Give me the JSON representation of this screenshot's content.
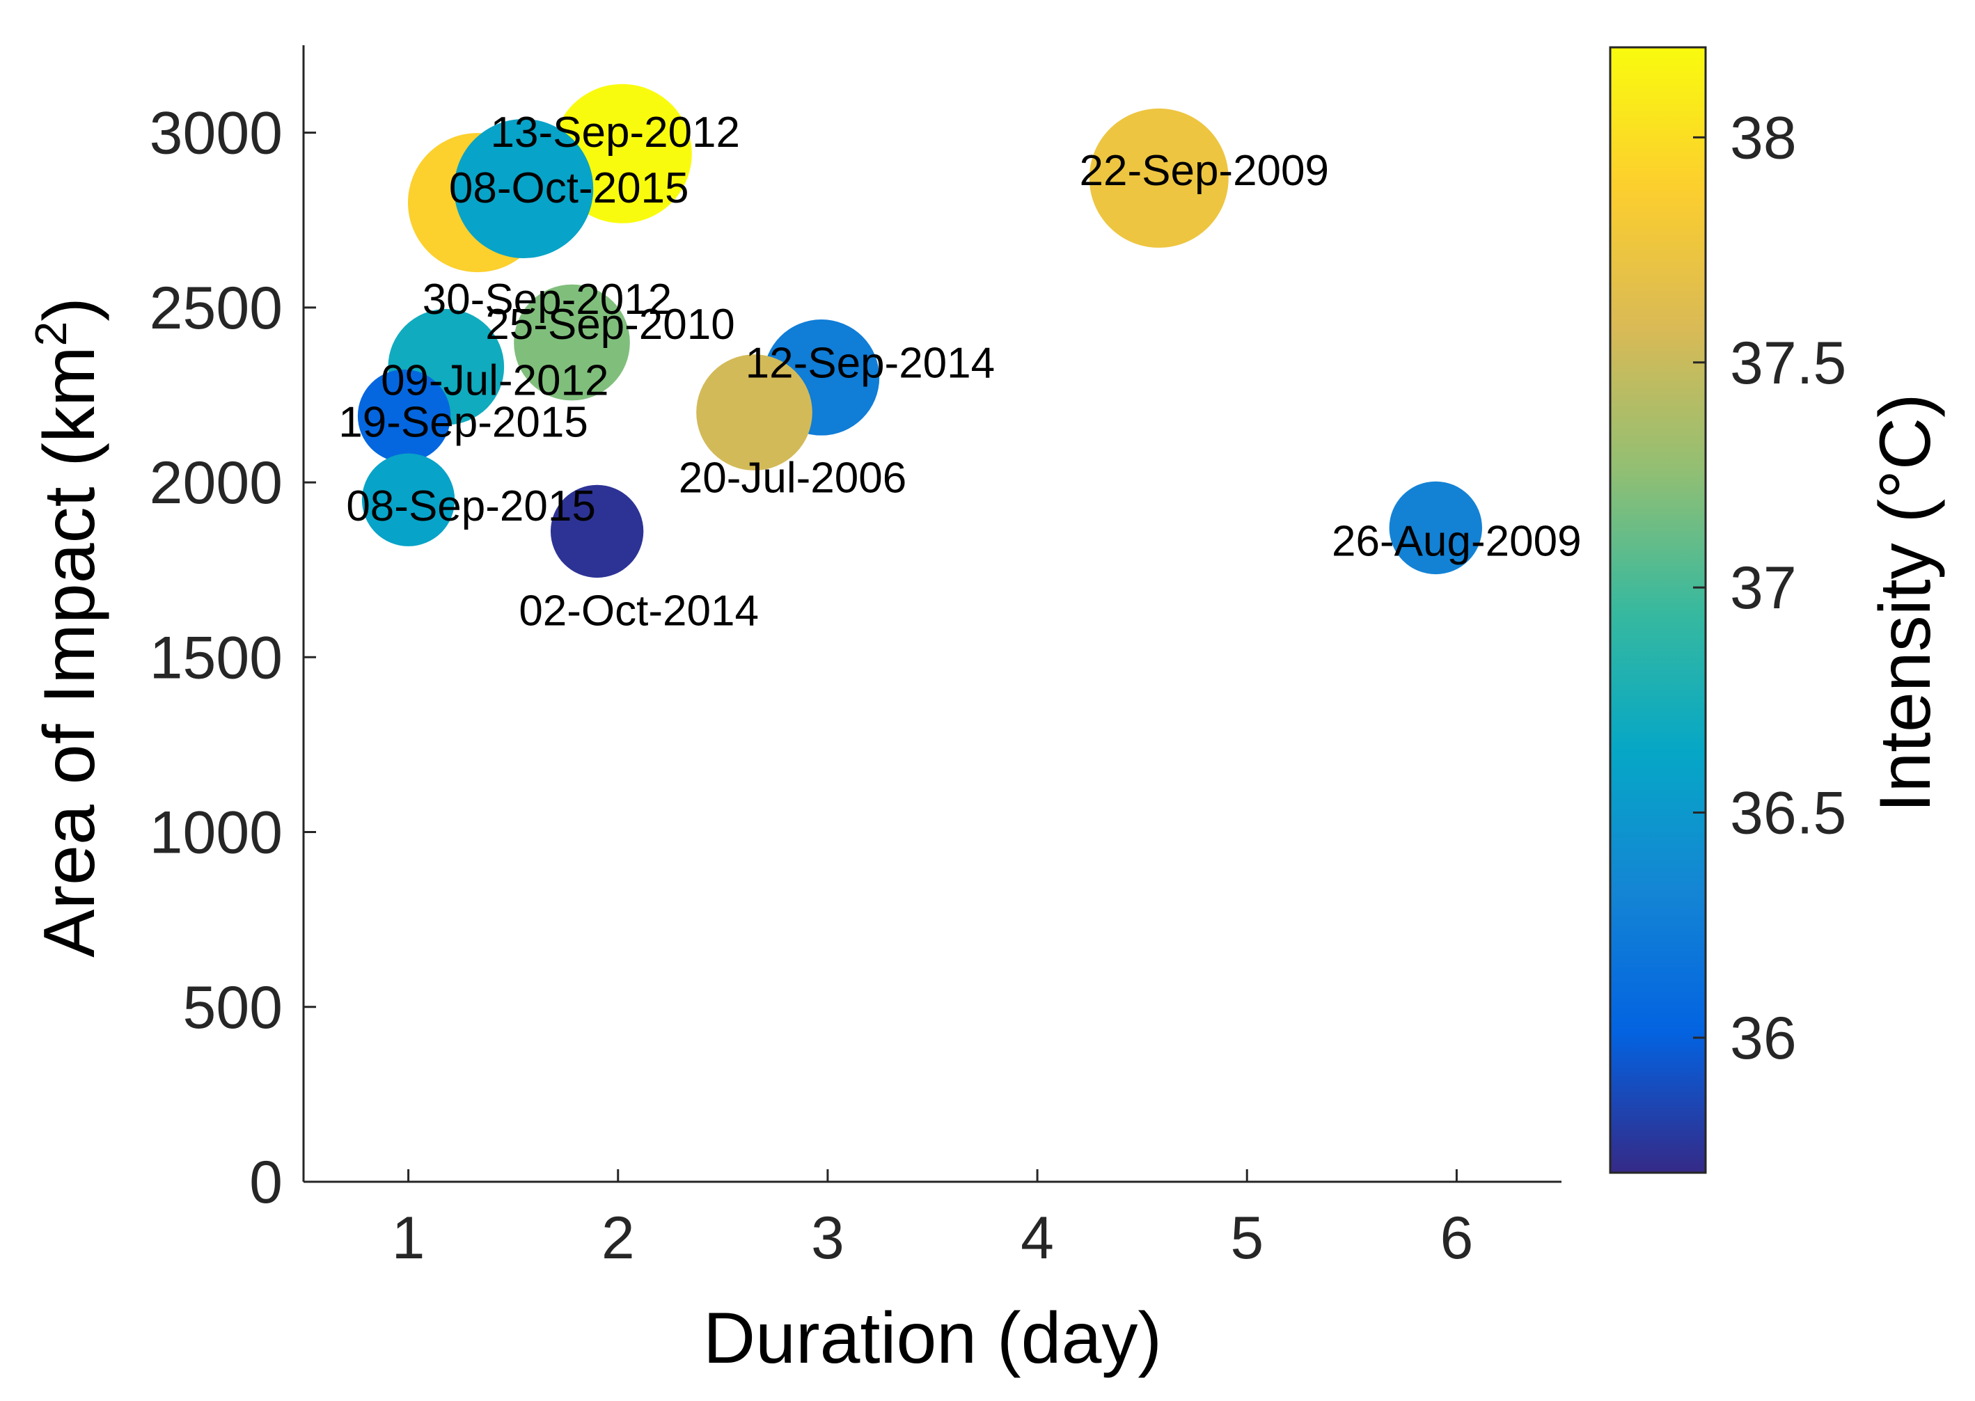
{
  "chart_data": {
    "type": "scatter",
    "subtype": "bubble",
    "title": "",
    "xlabel": "Duration (day)",
    "ylabel": "Area of Impact (km²)",
    "colorbar_label": "Intensity (°C)",
    "xlim": [
      0.5,
      6.5
    ],
    "ylim": [
      0,
      3250
    ],
    "xticks": [
      1,
      2,
      3,
      4,
      5,
      6
    ],
    "yticks": [
      0,
      500,
      1000,
      1500,
      2000,
      2500,
      3000
    ],
    "clim": [
      35.7,
      38.2
    ],
    "colorbar_ticks": [
      36,
      36.5,
      37,
      37.5,
      38
    ],
    "points": [
      {
        "label": "13-Sep-2012",
        "x": 2.02,
        "y": 2940,
        "intensity": 38.2,
        "size": 3
      },
      {
        "label": "30-Sep-2012",
        "x": 1.33,
        "y": 2800,
        "intensity": 37.9,
        "size": 3
      },
      {
        "label": "08-Oct-2015",
        "x": 1.55,
        "y": 2840,
        "intensity": 36.6,
        "size": 3
      },
      {
        "label": "22-Sep-2009",
        "x": 4.58,
        "y": 2870,
        "intensity": 37.75,
        "size": 3
      },
      {
        "label": "25-Sep-2010",
        "x": 1.78,
        "y": 2400,
        "intensity": 37.2,
        "size": 2.5
      },
      {
        "label": "09-Jul-2012",
        "x": 1.18,
        "y": 2330,
        "intensity": 36.7,
        "size": 2.5
      },
      {
        "label": "12-Sep-2014",
        "x": 2.97,
        "y": 2300,
        "intensity": 36.25,
        "size": 2.5
      },
      {
        "label": "20-Jul-2006",
        "x": 2.65,
        "y": 2200,
        "intensity": 37.55,
        "size": 2.5
      },
      {
        "label": "19-Sep-2015",
        "x": 0.98,
        "y": 2190,
        "intensity": 36.05,
        "size": 2
      },
      {
        "label": "08-Sep-2015",
        "x": 1.0,
        "y": 1950,
        "intensity": 36.6,
        "size": 2
      },
      {
        "label": "02-Oct-2014",
        "x": 1.9,
        "y": 1860,
        "intensity": 35.75,
        "size": 2
      },
      {
        "label": "26-Aug-2009",
        "x": 5.9,
        "y": 1870,
        "intensity": 36.3,
        "size": 2
      }
    ]
  }
}
